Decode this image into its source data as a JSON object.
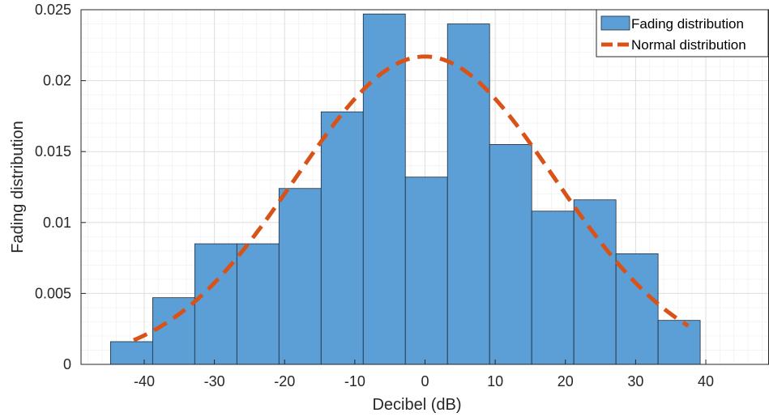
{
  "chart_data": {
    "type": "bar",
    "xlabel": "Decibel (dB)",
    "ylabel": "Fading distribution",
    "xlim": [
      -49,
      49
    ],
    "ylim": [
      0,
      0.025
    ],
    "xticks": [
      -40,
      -30,
      -20,
      -10,
      0,
      10,
      20,
      30,
      40
    ],
    "xtick_labels": [
      "-40",
      "-30",
      "-20",
      "-10",
      "0",
      "10",
      "20",
      "30",
      "40"
    ],
    "yticks": [
      0,
      0.005,
      0.01,
      0.015,
      0.02,
      0.025
    ],
    "ytick_labels": [
      "0",
      "0.005",
      "0.01",
      "0.015",
      "0.02",
      "0.025"
    ],
    "grid": true,
    "minor_grid": true,
    "legend_position": "top-right",
    "series": [
      {
        "name": "Fading distribution",
        "kind": "histogram",
        "color": "#5b9fd6",
        "edge_color": "#1f2a36",
        "bin_edges": [
          -44.8,
          -38.8,
          -32.8,
          -26.8,
          -20.8,
          -14.8,
          -8.8,
          -2.8,
          3.2,
          9.2,
          15.2,
          21.2,
          27.2,
          33.2,
          39.2
        ],
        "values": [
          0.0016,
          0.0047,
          0.0085,
          0.0085,
          0.0124,
          0.0178,
          0.0247,
          0.0132,
          0.024,
          0.0155,
          0.0108,
          0.0116,
          0.0078,
          0.0031
        ]
      },
      {
        "name": "Normal distribution",
        "kind": "line",
        "style": "dashed",
        "color": "#d95319",
        "mean": 0,
        "x_range": [
          -41.5,
          37.5
        ],
        "peak": 0.0217,
        "sigma": 18.4
      }
    ]
  }
}
